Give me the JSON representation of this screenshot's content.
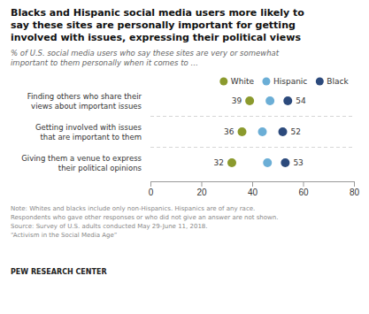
{
  "chart_data": {
    "type": "dot",
    "title": "Blacks and Hispanic social media users more likely to\nsay these sites are personally important for getting\ninvolved with issues, expressing their political views",
    "subtitle": "% of U.S. social media users who say these sites are very or somewhat\nimportant to them personally when it comes to …",
    "categories": [
      "Finding others who share their\nviews about important issues",
      "Getting involved with issues\nthat are important to them",
      "Giving them a venue to express\ntheir political opinions"
    ],
    "series": [
      {
        "name": "White",
        "color": "#8B9A2D",
        "values": [
          39,
          36,
          32
        ],
        "data_labels": true
      },
      {
        "name": "Hispanic",
        "color": "#6BAED6",
        "values": [
          47,
          44,
          46
        ],
        "data_labels": false
      },
      {
        "name": "Black",
        "color": "#2C4A7C",
        "values": [
          54,
          52,
          53
        ],
        "data_labels": true
      }
    ],
    "xlim": [
      0,
      80
    ],
    "xticks": [
      0,
      20,
      40,
      60,
      80
    ],
    "orientation": "horizontal",
    "legend": "top",
    "grid": false,
    "annotations": [
      "Note: Whites and blacks include only non-Hispanics. Hispanics are of any race.\nRespondents who gave other responses or who did not give an answer are not shown.\nSource: Survey of U.S. adults conducted May 29-June 11, 2018.\n“Activism in the Social Media Age”",
      "PEW RESEARCH CENTER"
    ]
  }
}
